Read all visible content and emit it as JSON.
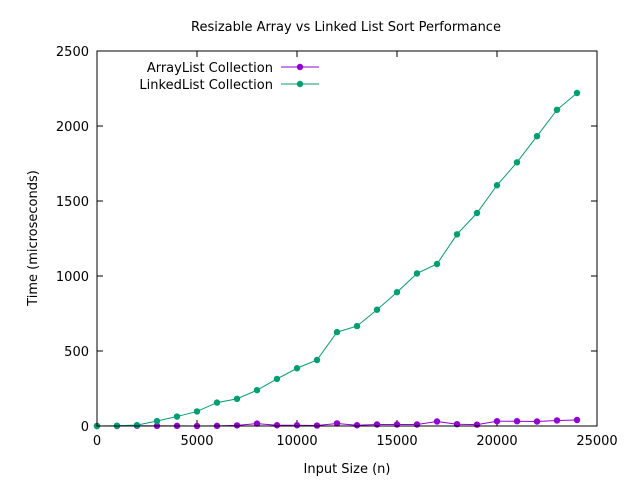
{
  "chart_data": {
    "type": "line",
    "title": "Resizable Array vs Linked List Sort Performance",
    "xlabel": "Input Size (n)",
    "ylabel": "Time (microseconds)",
    "xlim": [
      0,
      25000
    ],
    "ylim": [
      0,
      2500
    ],
    "xticks": [
      0,
      5000,
      10000,
      15000,
      20000,
      25000
    ],
    "yticks": [
      0,
      500,
      1000,
      1500,
      2000,
      2500
    ],
    "grid": false,
    "legend_position": "top-left",
    "x": [
      0,
      1000,
      2000,
      3000,
      4000,
      5000,
      6000,
      7000,
      8000,
      9000,
      10000,
      11000,
      12000,
      13000,
      14000,
      15000,
      16000,
      17000,
      18000,
      19000,
      20000,
      21000,
      22000,
      23000,
      24000
    ],
    "series": [
      {
        "name": "ArrayList Collection",
        "color": "#9400d3",
        "values": [
          0,
          0,
          2,
          1,
          1,
          0,
          1,
          4,
          16,
          5,
          5,
          3,
          17,
          5,
          10,
          10,
          10,
          30,
          12,
          9,
          32,
          32,
          30,
          37,
          40
        ]
      },
      {
        "name": "LinkedList Collection",
        "color": "#009e73",
        "values": [
          0,
          2,
          6,
          33,
          63,
          97,
          156,
          181,
          239,
          314,
          385,
          440,
          626,
          666,
          775,
          892,
          1017,
          1080,
          1278,
          1420,
          1605,
          1758,
          1932,
          2108,
          2220
        ]
      }
    ]
  }
}
